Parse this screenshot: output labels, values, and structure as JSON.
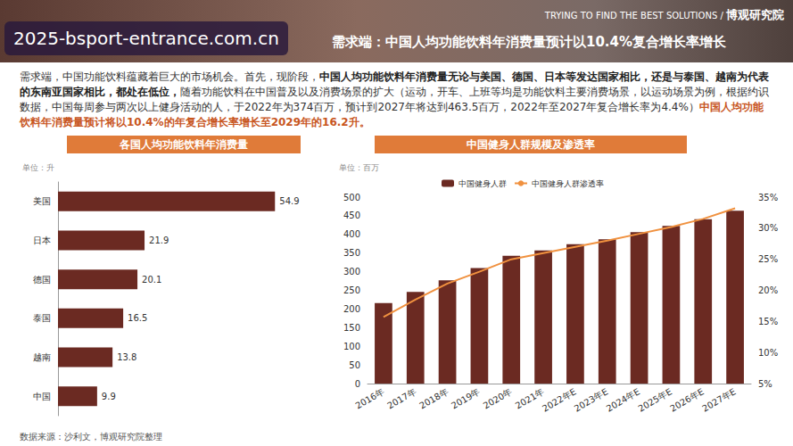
{
  "header": {
    "overlay_text": "2025-bsport-entrance.com.cn",
    "title": "需求端：中国人均功能饮料年消费量预计以10.4%复合增长率增长",
    "tagline": "TRYING TO FIND THE BEST SOLUTIONS",
    "separator": "/",
    "brand": "博观研究院"
  },
  "paragraph": [
    {
      "text": "需求端，中国功能饮料蕴藏着巨大的市场机会。首先，现阶段，",
      "style": "plain"
    },
    {
      "text": "中国人均功能饮料年消费量无论与美国、德国、日本等发达国家相比，还是与泰国、越南为代表的东南亚国家相比，都处在低位，",
      "style": "bold"
    },
    {
      "text": "随着功能饮料在中国普及以及消费场景的扩大（运动，开车、上班等均是功能饮料主要消费场景，以运动场景为例，根据约识数据，中国每周参与两次以上健身活动的人，于2022年为374百万，预计到2027年将达到463.5百万，2022年至2027年复合增长率为4.4%）",
      "style": "plain"
    },
    {
      "text": "中国人均功能饮料年消费量预计将以10.4%的年复合增长率增长至2029年的16.2升。",
      "style": "accent"
    }
  ],
  "source": "数据来源：沙利文，博观研究院整理",
  "chart_data": [
    {
      "type": "bar",
      "title": "各国人均功能饮料年消费量",
      "unit": "单位：升",
      "orientation": "horizontal",
      "categories": [
        "美国",
        "日本",
        "德国",
        "泰国",
        "越南",
        "中国"
      ],
      "values": [
        54.9,
        21.9,
        20.1,
        16.5,
        13.8,
        9.9
      ],
      "color": "#6b2a22",
      "xlim": [
        0,
        58
      ],
      "data_labels": true,
      "tick_labels": "y",
      "grid": false
    },
    {
      "type": "bar",
      "title": "中国健身人群规模及渗透率",
      "unit": "单位：百万",
      "categories": [
        "2016年",
        "2017年",
        "2018年",
        "2019年",
        "2020年",
        "2021年",
        "2022年E",
        "2023年E",
        "2024年E",
        "2025年E",
        "2026年E",
        "2027年E"
      ],
      "series": [
        {
          "name": "中国健身人群",
          "type": "bar",
          "color": "#6b2a22",
          "values": [
            216,
            246,
            277,
            310,
            343,
            357,
            374,
            387,
            406,
            423,
            441,
            463.5
          ]
        },
        {
          "name": "中国健身人群渗透率",
          "type": "line",
          "color": "#f0913f",
          "axis": "y2",
          "values": [
            15.7,
            18.5,
            21.1,
            23.0,
            25.0,
            26.0,
            27.0,
            28.0,
            29.1,
            30.2,
            31.5,
            33.2
          ]
        }
      ],
      "ylim": [
        0,
        500
      ],
      "yticks": [
        0,
        50,
        100,
        150,
        200,
        250,
        300,
        350,
        400,
        450,
        500
      ],
      "y2lim": [
        5,
        35
      ],
      "y2ticks": [
        {
          "value": 5,
          "label": "5%"
        },
        {
          "value": 10,
          "label": "10%"
        },
        {
          "value": 15,
          "label": "15%"
        },
        {
          "value": 20,
          "label": "20%"
        },
        {
          "value": 25,
          "label": "25%"
        },
        {
          "value": 30,
          "label": "30%"
        },
        {
          "value": 35,
          "label": "35%"
        }
      ],
      "legend": "top",
      "grid": false
    }
  ]
}
